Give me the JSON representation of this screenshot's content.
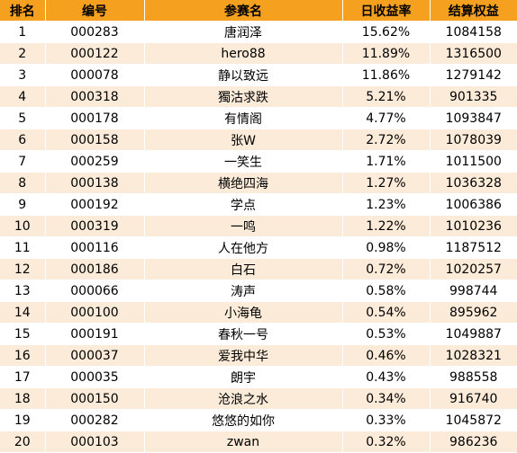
{
  "table": {
    "headers": [
      "排名",
      "编号",
      "参赛名",
      "日收益率",
      "结算权益"
    ],
    "rows": [
      [
        "1",
        "000283",
        "唐润泽",
        "15.62%",
        "1084158"
      ],
      [
        "2",
        "000122",
        "hero88",
        "11.89%",
        "1316500"
      ],
      [
        "3",
        "000078",
        "静以致远",
        "11.86%",
        "1279142"
      ],
      [
        "4",
        "000318",
        "獨沽求跌",
        "5.21%",
        "901335"
      ],
      [
        "5",
        "000178",
        "有情阁",
        "4.77%",
        "1093847"
      ],
      [
        "6",
        "000158",
        "张W",
        "2.72%",
        "1078039"
      ],
      [
        "7",
        "000259",
        "一笑生",
        "1.71%",
        "1011500"
      ],
      [
        "8",
        "000138",
        "横绝四海",
        "1.27%",
        "1036328"
      ],
      [
        "9",
        "000192",
        "学点",
        "1.23%",
        "1006386"
      ],
      [
        "10",
        "000319",
        "一鸣",
        "1.22%",
        "1010236"
      ],
      [
        "11",
        "000116",
        "人在他方",
        "0.98%",
        "1187512"
      ],
      [
        "12",
        "000186",
        "白石",
        "0.72%",
        "1020257"
      ],
      [
        "13",
        "000066",
        "涛声",
        "0.58%",
        "998744"
      ],
      [
        "14",
        "000100",
        "小海龟",
        "0.54%",
        "895962"
      ],
      [
        "15",
        "000191",
        "春秋一号",
        "0.53%",
        "1049887"
      ],
      [
        "16",
        "000037",
        "爱我中华",
        "0.46%",
        "1028321"
      ],
      [
        "17",
        "000035",
        "朗宇",
        "0.43%",
        "988558"
      ],
      [
        "18",
        "000150",
        "沧浪之水",
        "0.34%",
        "916740"
      ],
      [
        "19",
        "000282",
        "悠悠的如你",
        "0.33%",
        "1045872"
      ],
      [
        "20",
        "000103",
        "zwan",
        "0.32%",
        "986236"
      ]
    ]
  },
  "colors": {
    "header_bg": "#f5a11f",
    "row_even_bg": "#fcebd8",
    "row_odd_bg": "#ffffff"
  }
}
